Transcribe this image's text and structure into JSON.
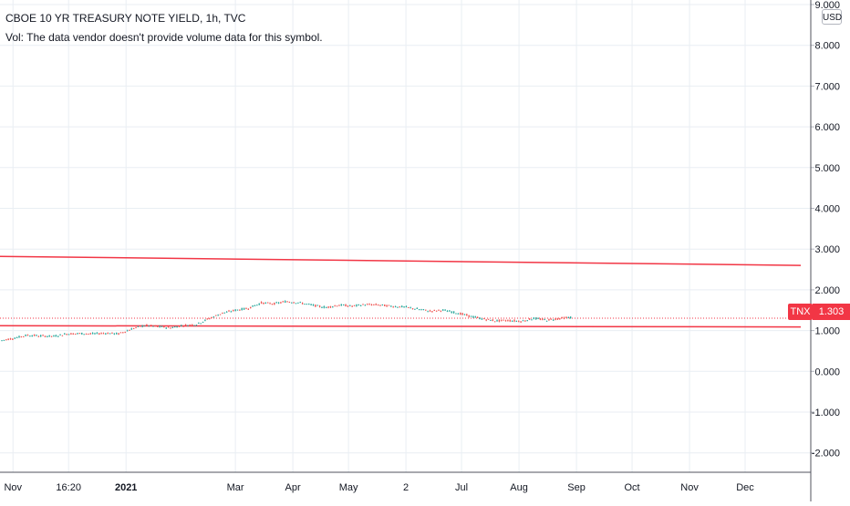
{
  "legend": {
    "title": "CBOE 10 YR TREASURY NOTE YIELD, 1h, TVC",
    "volume_note": "Vol: The data vendor doesn't provide volume data for this symbol."
  },
  "currency_label": "USD",
  "last_price": {
    "symbol": "TNX",
    "value": "1.303"
  },
  "colors": {
    "grid": "#e9eef3",
    "axis_text": "#131722",
    "up": "#26a69a",
    "down": "#ef5350",
    "trend_line": "#f23645",
    "price_line": "#f23645"
  },
  "chart_data": {
    "type": "candlestick",
    "title": "CBOE 10 YR TREASURY NOTE YIELD, 1h, TVC",
    "ylim": [
      -2.7,
      9.0
    ],
    "y_ticks": [
      "9.000",
      "8.000",
      "7.000",
      "6.000",
      "5.000",
      "4.000",
      "3.000",
      "2.000",
      "1.000",
      "0.000",
      "-1.000",
      "-2.000"
    ],
    "y_tick_values": [
      9,
      8,
      7,
      6,
      5,
      4,
      3,
      2,
      1,
      0,
      -1,
      -2
    ],
    "x_ticks": [
      "Nov",
      "16:20",
      "2021",
      "Mar",
      "Apr",
      "May",
      "2",
      "Jul",
      "Aug",
      "Sep",
      "Oct",
      "Nov",
      "Dec"
    ],
    "x_tick_dates": [
      "2020-11-01",
      "2020-12-01",
      "2021-01-01",
      "2021-03-01",
      "2021-04-01",
      "2021-05-01",
      "2021-06-01",
      "2021-07-01",
      "2021-08-01",
      "2021-09-01",
      "2021-10-01",
      "2021-11-01",
      "2021-12-01"
    ],
    "x_range": [
      "2020-10-25",
      "2021-12-31"
    ],
    "bold_ticks": [
      "2021"
    ],
    "grid": true,
    "series": [
      {
        "dates": [
          "2020-10-26",
          "2020-11-02",
          "2020-11-09",
          "2020-11-16",
          "2020-11-23",
          "2020-11-30",
          "2020-12-07",
          "2020-12-14",
          "2020-12-21",
          "2020-12-28",
          "2021-01-04",
          "2021-01-11",
          "2021-01-18",
          "2021-01-25",
          "2021-02-01",
          "2021-02-08",
          "2021-02-15",
          "2021-02-22",
          "2021-03-01",
          "2021-03-08",
          "2021-03-15",
          "2021-03-22",
          "2021-03-29",
          "2021-04-05",
          "2021-04-12",
          "2021-04-19",
          "2021-04-26",
          "2021-05-03",
          "2021-05-10",
          "2021-05-17",
          "2021-05-24",
          "2021-05-31",
          "2021-06-07",
          "2021-06-14",
          "2021-06-21",
          "2021-06-28",
          "2021-07-05",
          "2021-07-12",
          "2021-07-19",
          "2021-07-26",
          "2021-08-02",
          "2021-08-09",
          "2021-08-16",
          "2021-08-23",
          "2021-08-30"
        ],
        "values": [
          0.76,
          0.82,
          0.89,
          0.87,
          0.86,
          0.92,
          0.93,
          0.92,
          0.94,
          0.92,
          1.04,
          1.13,
          1.1,
          1.07,
          1.13,
          1.15,
          1.3,
          1.43,
          1.5,
          1.55,
          1.68,
          1.66,
          1.72,
          1.68,
          1.62,
          1.57,
          1.63,
          1.6,
          1.64,
          1.63,
          1.6,
          1.58,
          1.53,
          1.48,
          1.5,
          1.44,
          1.36,
          1.29,
          1.24,
          1.25,
          1.23,
          1.3,
          1.26,
          1.3,
          1.33
        ]
      }
    ],
    "horizontal_lines": [
      {
        "value": 1.303,
        "style": "dotted"
      }
    ],
    "trend_lines": [
      {
        "start": [
          "2020-10-25",
          2.82
        ],
        "end": [
          "2021-12-31",
          2.6
        ]
      },
      {
        "start": [
          "2020-10-25",
          1.12
        ],
        "end": [
          "2021-12-31",
          1.09
        ]
      }
    ]
  }
}
